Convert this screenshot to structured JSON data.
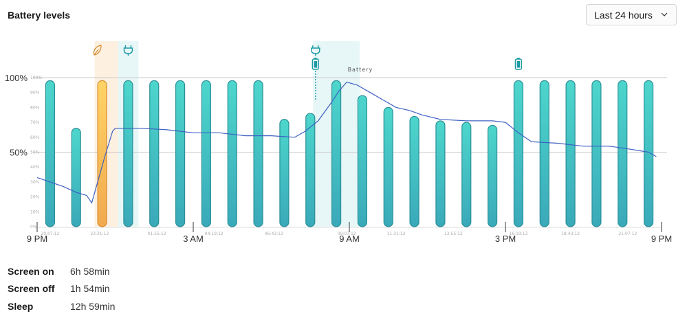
{
  "header": {
    "title": "Battery levels",
    "range_selected": "Last 24 hours"
  },
  "colors": {
    "bar_fill_top": "#4dd6cc",
    "bar_fill_bottom": "#3aa9b9",
    "bar_stroke": "#2a8f98",
    "saver_bar_top": "#ffd466",
    "saver_bar_bottom": "#f1a94e",
    "saver_bar_stroke": "#d98b2b",
    "charging_band": "#e7f6f6",
    "saver_band": "#fdf0e0",
    "line": "#3e61c2",
    "gridline": "#c9c9c9",
    "plug_icon": "#1d9aa5",
    "leaf_icon": "#d98b2b"
  },
  "chart_data": {
    "type": "bar",
    "ylim": [
      0,
      100
    ],
    "y_ticks": [
      {
        "value": 100,
        "label": "100%"
      },
      {
        "value": 50,
        "label": "50%"
      }
    ],
    "y_minor_ticks": [
      "100%",
      "90%",
      "80%",
      "70%",
      "60%",
      "50%",
      "40%",
      "30%",
      "20%",
      "10%",
      "0%"
    ],
    "x_major_ticks": [
      {
        "hour": 0,
        "label": "9 PM"
      },
      {
        "hour": 6,
        "label": "3 AM"
      },
      {
        "hour": 12,
        "label": "9 AM"
      },
      {
        "hour": 18,
        "label": "3 PM"
      },
      {
        "hour": 24,
        "label": "9 PM"
      }
    ],
    "x_minor_labels": [
      {
        "hour": 0.5,
        "label": "20:07:12"
      },
      {
        "hour": 2.4,
        "label": "23:31:12"
      },
      {
        "hour": 4.6,
        "label": "01:55:12"
      },
      {
        "hour": 6.8,
        "label": "04:19:12"
      },
      {
        "hour": 9.1,
        "label": "06:43:12"
      },
      {
        "hour": 11.9,
        "label": "09:07:12"
      },
      {
        "hour": 13.8,
        "label": "11:31:12"
      },
      {
        "hour": 16.0,
        "label": "13:55:12"
      },
      {
        "hour": 18.5,
        "label": "16:19:12"
      },
      {
        "hour": 20.5,
        "label": "18:43:12"
      },
      {
        "hour": 22.7,
        "label": "21:07:12"
      }
    ],
    "series": [
      {
        "name": "Battery",
        "type": "bar",
        "hours": [
          0.5,
          1.5,
          2.5,
          3.5,
          4.5,
          5.5,
          6.5,
          7.5,
          8.5,
          9.5,
          10.5,
          11.5,
          12.5,
          13.5,
          14.5,
          15.5,
          16.5,
          17.5,
          18.5,
          19.5,
          20.5,
          21.5,
          22.5,
          23.5
        ],
        "values": [
          98,
          66,
          98,
          98,
          98,
          98,
          98,
          98,
          98,
          72,
          76,
          98,
          88,
          80,
          74,
          71,
          70,
          68,
          98,
          98,
          98,
          98,
          98,
          98
        ],
        "saver": [
          false,
          false,
          true,
          false,
          false,
          false,
          false,
          false,
          false,
          false,
          false,
          false,
          false,
          false,
          false,
          false,
          false,
          false,
          false,
          false,
          false,
          false,
          false,
          false
        ]
      },
      {
        "name": "Battery",
        "type": "line",
        "hours": [
          0,
          0.5,
          1.0,
          1.5,
          1.9,
          2.1,
          2.6,
          2.9,
          3.0,
          3.5,
          4.0,
          5.0,
          6.0,
          7.0,
          8.0,
          9.0,
          9.9,
          10.3,
          10.8,
          11.3,
          11.6,
          11.9,
          12.3,
          12.8,
          13.3,
          13.8,
          14.3,
          14.8,
          15.5,
          16.5,
          17.5,
          18.0,
          18.5,
          19.0,
          20.0,
          21.0,
          22.0,
          22.8,
          23.5,
          23.8
        ],
        "values": [
          33,
          30,
          27,
          23,
          21,
          16,
          47,
          64,
          66,
          66,
          66,
          65,
          63,
          63,
          61,
          61,
          60,
          64,
          71,
          83,
          91,
          97,
          95,
          90,
          85,
          80,
          78,
          75,
          72,
          71,
          71,
          70,
          63,
          57,
          56,
          54,
          54,
          52,
          50,
          47
        ]
      }
    ],
    "charging_periods": [
      [
        3.0,
        4.0
      ],
      [
        10.5,
        12.5
      ]
    ],
    "saver_periods": [
      [
        2.0,
        3.0
      ]
    ],
    "event_icons": [
      {
        "hour": 2.3,
        "icon": "leaf-icon",
        "row": "top"
      },
      {
        "hour": 3.5,
        "icon": "plug-icon",
        "row": "top"
      },
      {
        "hour": 10.7,
        "icon": "plug-icon",
        "row": "top"
      },
      {
        "hour": 10.7,
        "icon": "battery-charging-icon",
        "row": "bottom"
      },
      {
        "hour": 18.5,
        "icon": "battery-charging-icon",
        "row": "bottom"
      }
    ],
    "annotation": {
      "hour": 12.2,
      "text": "Battery"
    }
  },
  "stats": [
    {
      "label": "Screen on",
      "value": "6h 58min"
    },
    {
      "label": "Screen off",
      "value": "1h 54min"
    },
    {
      "label": "Sleep",
      "value": "12h 59min"
    }
  ]
}
